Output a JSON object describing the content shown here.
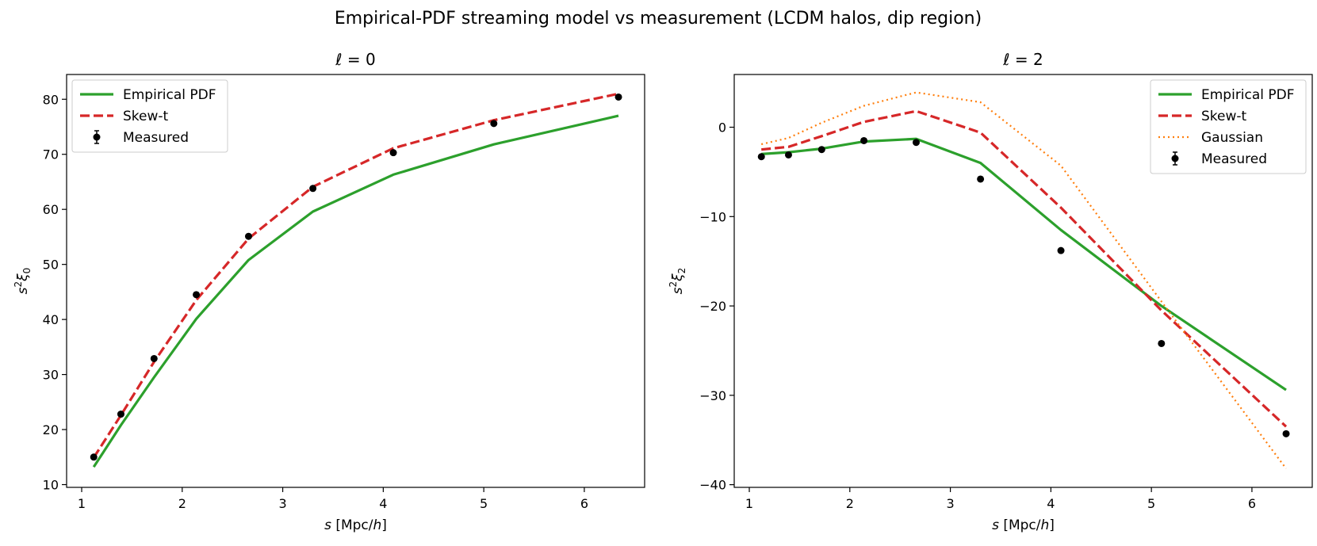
{
  "chart_data": {
    "title": "Empirical-PDF streaming model vs measurement (LCDM halos, dip region)",
    "panels": [
      {
        "type": "line",
        "title": "ℓ = 0",
        "title_parts": [
          "ℓ",
          " = 0"
        ],
        "xlabel": "s [Mpc/h]",
        "xlabel_parts": [
          "s",
          " [Mpc/",
          "h",
          "]"
        ],
        "ylabel": "s²ξ₀",
        "ylabel_parts": [
          "s",
          "2",
          "ξ",
          "0"
        ],
        "xlim": [
          0.85,
          6.6
        ],
        "ylim": [
          9.5,
          84.5
        ],
        "xticks": [
          1,
          2,
          3,
          4,
          5,
          6
        ],
        "yticks": [
          10,
          20,
          30,
          40,
          50,
          60,
          70,
          80
        ],
        "legend": "upper-left",
        "x": [
          1.12,
          1.39,
          1.72,
          2.14,
          2.66,
          3.3,
          4.1,
          5.1,
          6.34
        ],
        "series": [
          {
            "name": "Empirical PDF",
            "color": "#2ca02c",
            "style": "solid",
            "values": [
              13.2,
              20.8,
              29.5,
              40.1,
              50.8,
              59.6,
              66.3,
              71.8,
              77.0
            ]
          },
          {
            "name": "Skew-t",
            "color": "#d62728",
            "style": "dashed",
            "values": [
              14.9,
              22.6,
              32.3,
              43.5,
              54.7,
              64.1,
              71.1,
              76.2,
              81.0
            ]
          }
        ],
        "measured": {
          "name": "Measured",
          "color": "#000000",
          "values": [
            15.0,
            22.8,
            32.9,
            44.5,
            55.1,
            63.8,
            70.3,
            75.6,
            80.4
          ]
        }
      },
      {
        "type": "line",
        "title": "ℓ = 2",
        "title_parts": [
          "ℓ",
          " = 2"
        ],
        "xlabel": "s [Mpc/h]",
        "xlabel_parts": [
          "s",
          " [Mpc/",
          "h",
          "]"
        ],
        "ylabel": "s²ξ₂",
        "ylabel_parts": [
          "s",
          "2",
          "ξ",
          "2"
        ],
        "xlim": [
          0.85,
          6.6
        ],
        "ylim": [
          -40.3,
          5.9
        ],
        "xticks": [
          1,
          2,
          3,
          4,
          5,
          6
        ],
        "yticks": [
          0,
          -10,
          -20,
          -30,
          -40
        ],
        "legend": "upper-right",
        "x": [
          1.12,
          1.39,
          1.72,
          2.14,
          2.66,
          3.3,
          4.1,
          5.1,
          6.34
        ],
        "series": [
          {
            "name": "Empirical PDF",
            "color": "#2ca02c",
            "style": "solid",
            "values": [
              -3.0,
              -2.8,
              -2.4,
              -1.6,
              -1.3,
              -4.0,
              -11.5,
              -20.0,
              -29.4
            ]
          },
          {
            "name": "Skew-t",
            "color": "#d62728",
            "style": "dashed",
            "values": [
              -2.5,
              -2.2,
              -1.0,
              0.6,
              1.8,
              -0.6,
              -9.0,
              -20.5,
              -33.5
            ]
          },
          {
            "name": "Gaussian",
            "color": "#ff7f0e",
            "style": "dotted",
            "values": [
              -1.9,
              -1.2,
              0.5,
              2.4,
              3.9,
              2.8,
              -4.3,
              -19.5,
              -38.2
            ]
          }
        ],
        "measured": {
          "name": "Measured",
          "color": "#000000",
          "values": [
            -3.3,
            -3.1,
            -2.5,
            -1.5,
            -1.7,
            -5.8,
            -13.8,
            -24.2,
            -34.3
          ]
        }
      }
    ]
  }
}
